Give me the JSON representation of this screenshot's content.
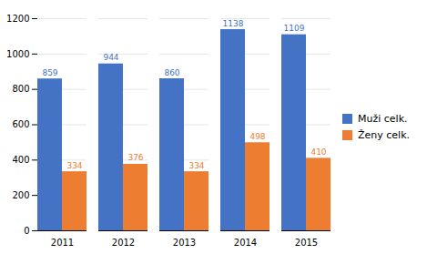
{
  "chart_data": {
    "type": "bar",
    "categories": [
      "2011",
      "2012",
      "2013",
      "2014",
      "2015"
    ],
    "series": [
      {
        "name": "Muži celk.",
        "color": "#4472C4",
        "values": [
          859,
          944,
          860,
          1138,
          1109
        ]
      },
      {
        "name": "Ženy celk.",
        "color": "#ED7D31",
        "values": [
          334,
          376,
          334,
          498,
          410
        ]
      }
    ],
    "ylim": [
      0,
      1200
    ],
    "yticks": [
      0,
      200,
      400,
      600,
      800,
      1000,
      1200
    ],
    "grid": true,
    "legend": "right",
    "data_labels": true
  }
}
